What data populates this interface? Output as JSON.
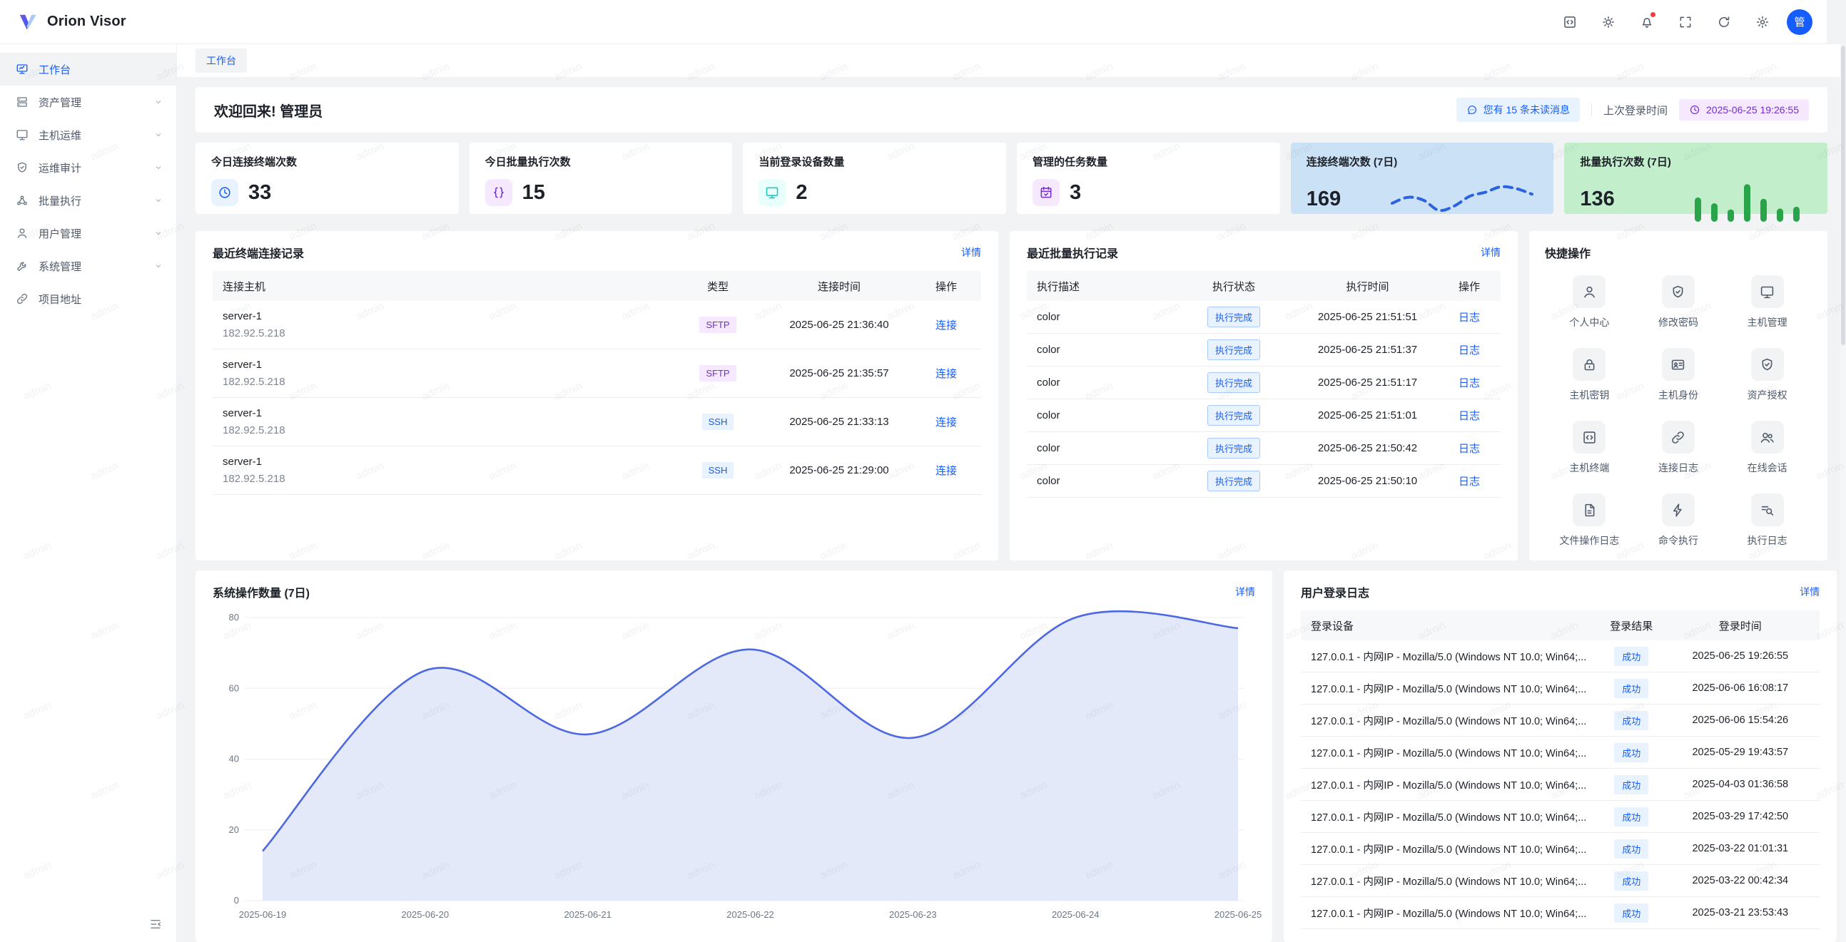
{
  "app": {
    "name": "Orion Visor",
    "avatar_text": "管"
  },
  "header": {
    "icons": [
      {
        "icon": "code-square-icon"
      },
      {
        "icon": "sun-icon"
      },
      {
        "icon": "bell-icon",
        "dot": true
      },
      {
        "icon": "fullscreen-icon"
      },
      {
        "icon": "refresh-icon"
      },
      {
        "icon": "gear-icon"
      }
    ]
  },
  "sidebar": {
    "items": [
      {
        "key": "workbench",
        "label": "工作台",
        "icon": "workbench-icon",
        "active": true,
        "expandable": false
      },
      {
        "key": "assets",
        "label": "资产管理",
        "icon": "assets-icon",
        "active": false,
        "expandable": true
      },
      {
        "key": "host-ops",
        "label": "主机运维",
        "icon": "monitor-icon",
        "active": false,
        "expandable": true
      },
      {
        "key": "audit",
        "label": "运维审计",
        "icon": "shield-check-icon",
        "active": false,
        "expandable": true
      },
      {
        "key": "batch",
        "label": "批量执行",
        "icon": "batch-icon",
        "active": false,
        "expandable": true
      },
      {
        "key": "users",
        "label": "用户管理",
        "icon": "user-icon",
        "active": false,
        "expandable": true
      },
      {
        "key": "system",
        "label": "系统管理",
        "icon": "wrench-icon",
        "active": false,
        "expandable": true
      },
      {
        "key": "project",
        "label": "项目地址",
        "icon": "link-icon",
        "active": false,
        "expandable": false
      }
    ]
  },
  "breadcrumb": [
    "工作台"
  ],
  "welcome": {
    "title": "欢迎回来! 管理员",
    "unread_badge": "您有 15 条未读消息",
    "last_login_label": "上次登录时间",
    "last_login_time": "2025-06-25 19:26:55"
  },
  "stat_cards": [
    {
      "label": "今日连接终端次数",
      "value": "33",
      "icon": "clock-icon",
      "icon_color": "#165dff",
      "icon_bg": "#e8f3ff",
      "type": "plain"
    },
    {
      "label": "今日批量执行次数",
      "value": "15",
      "icon": "braces-icon",
      "icon_color": "#722ed1",
      "icon_bg": "#f5e8ff",
      "type": "plain"
    },
    {
      "label": "当前登录设备数量",
      "value": "2",
      "icon": "monitor-icon",
      "icon_color": "#0fc6c2",
      "icon_bg": "#e8fffb",
      "type": "plain"
    },
    {
      "label": "管理的任务数量",
      "value": "3",
      "icon": "task-check-icon",
      "icon_color": "#722ed1",
      "icon_bg": "#f5e8ff",
      "type": "plain"
    },
    {
      "label": "连接终端次数 (7日)",
      "value": "169",
      "type": "spark-line",
      "bg": "#cbe2f6",
      "line_color": "#2d62e0",
      "chart_ref": 1
    },
    {
      "label": "批量执行次数 (7日)",
      "value": "136",
      "type": "spark-bars",
      "bg": "#c3eecb",
      "bar_color": "#2aa44a",
      "chart_ref": 2
    }
  ],
  "terminal_panel": {
    "title": "最近终端连接记录",
    "detail_link": "详情",
    "columns": [
      "连接主机",
      "类型",
      "连接时间",
      "操作"
    ],
    "rows": [
      {
        "host": "server-1",
        "ip": "182.92.5.218",
        "type": "SFTP",
        "time": "2025-06-25 21:36:40",
        "action": "连接"
      },
      {
        "host": "server-1",
        "ip": "182.92.5.218",
        "type": "SFTP",
        "time": "2025-06-25 21:35:57",
        "action": "连接"
      },
      {
        "host": "server-1",
        "ip": "182.92.5.218",
        "type": "SSH",
        "time": "2025-06-25 21:33:13",
        "action": "连接"
      },
      {
        "host": "server-1",
        "ip": "182.92.5.218",
        "type": "SSH",
        "time": "2025-06-25 21:29:00",
        "action": "连接"
      }
    ]
  },
  "batch_panel": {
    "title": "最近批量执行记录",
    "detail_link": "详情",
    "columns": [
      "执行描述",
      "执行状态",
      "执行时间",
      "操作"
    ],
    "rows": [
      {
        "desc": "color",
        "status": "执行完成",
        "time": "2025-06-25 21:51:51",
        "action": "日志"
      },
      {
        "desc": "color",
        "status": "执行完成",
        "time": "2025-06-25 21:51:37",
        "action": "日志"
      },
      {
        "desc": "color",
        "status": "执行完成",
        "time": "2025-06-25 21:51:17",
        "action": "日志"
      },
      {
        "desc": "color",
        "status": "执行完成",
        "time": "2025-06-25 21:51:01",
        "action": "日志"
      },
      {
        "desc": "color",
        "status": "执行完成",
        "time": "2025-06-25 21:50:42",
        "action": "日志"
      },
      {
        "desc": "color",
        "status": "执行完成",
        "time": "2025-06-25 21:50:10",
        "action": "日志"
      }
    ]
  },
  "quick_panel": {
    "title": "快捷操作",
    "items": [
      {
        "label": "个人中心",
        "icon": "user-icon"
      },
      {
        "label": "修改密码",
        "icon": "shield-check-icon"
      },
      {
        "label": "主机管理",
        "icon": "monitor-icon"
      },
      {
        "label": "主机密钥",
        "icon": "lock-icon"
      },
      {
        "label": "主机身份",
        "icon": "id-card-icon"
      },
      {
        "label": "资产授权",
        "icon": "shield-check-icon"
      },
      {
        "label": "主机终端",
        "icon": "code-square-icon"
      },
      {
        "label": "连接日志",
        "icon": "link-icon"
      },
      {
        "label": "在线会话",
        "icon": "users-icon"
      },
      {
        "label": "文件操作日志",
        "icon": "file-text-icon"
      },
      {
        "label": "命令执行",
        "icon": "lightning-icon"
      },
      {
        "label": "执行日志",
        "icon": "search-list-icon"
      }
    ]
  },
  "chart_panel": {
    "title": "系统操作数量 (7日)",
    "detail_link": "详情"
  },
  "chart_data": [
    {
      "type": "area",
      "title": "系统操作数量 (7日)",
      "x": [
        "2025-06-19",
        "2025-06-20",
        "2025-06-21",
        "2025-06-22",
        "2025-06-23",
        "2025-06-24",
        "2025-06-25"
      ],
      "values": [
        14,
        65,
        47,
        71,
        46,
        80,
        77
      ],
      "ylim": [
        0,
        80
      ],
      "yticks": [
        0,
        20,
        40,
        60,
        80
      ],
      "grid": true,
      "legend": false,
      "line_color": "#4c68e2",
      "fill_color": "#e4e9fa"
    },
    {
      "type": "line",
      "title": "连接终端次数 (7日)",
      "style": "dashed",
      "values": [
        40,
        55,
        48,
        22,
        33,
        58,
        68,
        82,
        77,
        63
      ],
      "line_color": "#2d62e0"
    },
    {
      "type": "bar",
      "title": "批量执行次数 (7日)",
      "values": [
        55,
        42,
        28,
        85,
        52,
        30,
        34
      ],
      "bar_color": "#2aa44a"
    }
  ],
  "login_panel": {
    "title": "用户登录日志",
    "detail_link": "详情",
    "columns": [
      "登录设备",
      "登录结果",
      "登录时间"
    ],
    "rows": [
      {
        "device": "127.0.0.1 - 内网IP - Mozilla/5.0 (Windows NT 10.0; Win64;...",
        "result": "成功",
        "time": "2025-06-25 19:26:55"
      },
      {
        "device": "127.0.0.1 - 内网IP - Mozilla/5.0 (Windows NT 10.0; Win64;...",
        "result": "成功",
        "time": "2025-06-06 16:08:17"
      },
      {
        "device": "127.0.0.1 - 内网IP - Mozilla/5.0 (Windows NT 10.0; Win64;...",
        "result": "成功",
        "time": "2025-06-06 15:54:26"
      },
      {
        "device": "127.0.0.1 - 内网IP - Mozilla/5.0 (Windows NT 10.0; Win64;...",
        "result": "成功",
        "time": "2025-05-29 19:43:57"
      },
      {
        "device": "127.0.0.1 - 内网IP - Mozilla/5.0 (Windows NT 10.0; Win64;...",
        "result": "成功",
        "time": "2025-04-03 01:36:58"
      },
      {
        "device": "127.0.0.1 - 内网IP - Mozilla/5.0 (Windows NT 10.0; Win64;...",
        "result": "成功",
        "time": "2025-03-29 17:42:50"
      },
      {
        "device": "127.0.0.1 - 内网IP - Mozilla/5.0 (Windows NT 10.0; Win64;...",
        "result": "成功",
        "time": "2025-03-22 01:01:31"
      },
      {
        "device": "127.0.0.1 - 内网IP - Mozilla/5.0 (Windows NT 10.0; Win64;...",
        "result": "成功",
        "time": "2025-03-22 00:42:34"
      },
      {
        "device": "127.0.0.1 - 内网IP - Mozilla/5.0 (Windows NT 10.0; Win64;...",
        "result": "成功",
        "time": "2025-03-21 23:53:43"
      }
    ]
  },
  "watermark": {
    "text": "admin"
  },
  "colors": {
    "primary": "#165dff",
    "purple": "#722ed1",
    "success_bg": "#e8f3ff",
    "danger_dot": "#f53f3f"
  }
}
